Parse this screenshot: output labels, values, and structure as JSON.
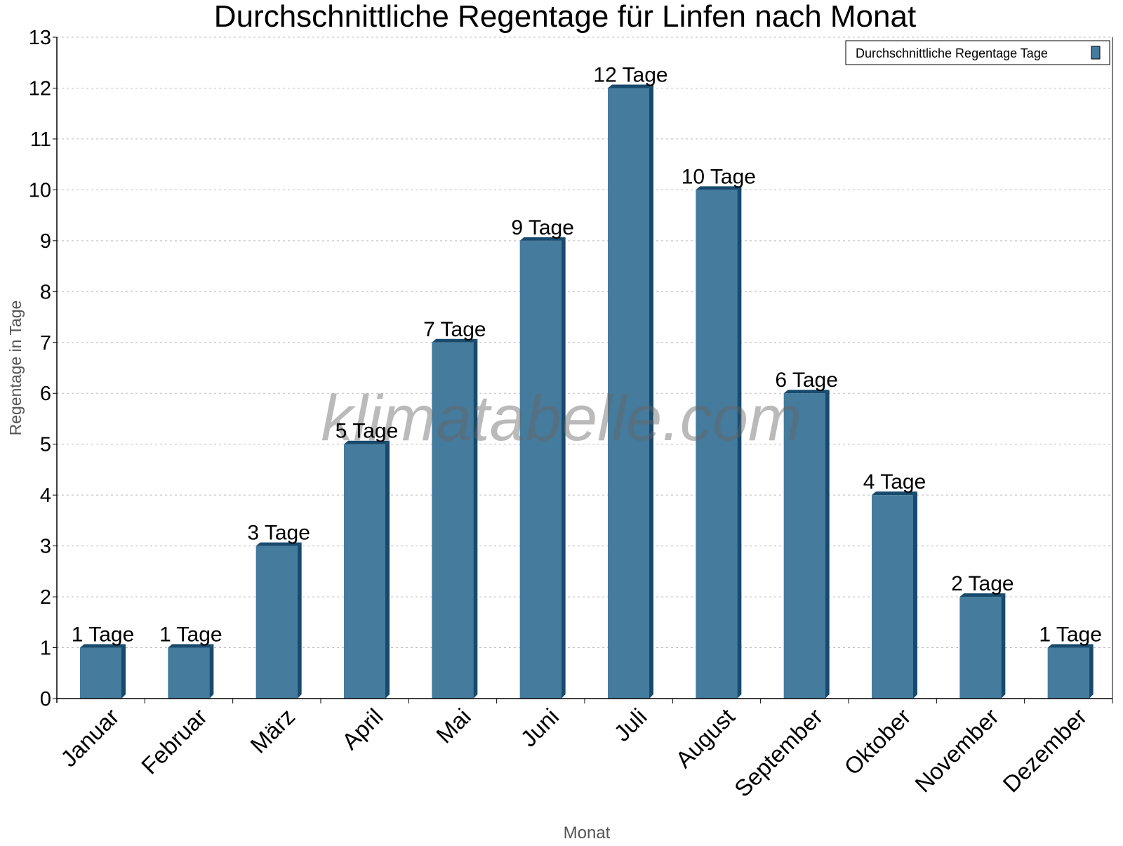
{
  "chart_data": {
    "type": "bar",
    "title": "Durchschnittliche Regentage für Linfen nach Monat",
    "xlabel": "Monat",
    "ylabel": "Regentage in Tage",
    "categories": [
      "Januar",
      "Februar",
      "März",
      "April",
      "Mai",
      "Juni",
      "Juli",
      "August",
      "September",
      "Oktober",
      "November",
      "Dezember"
    ],
    "series": [
      {
        "name": "Durchschnittliche Regentage Tage",
        "values": [
          1,
          1,
          3,
          5,
          7,
          9,
          12,
          10,
          6,
          4,
          2,
          1
        ],
        "color": "#457b9d",
        "side_color": "#174a6d"
      }
    ],
    "data_labels": [
      "1 Tage",
      "1 Tage",
      "3 Tage",
      "5 Tage",
      "7 Tage",
      "9 Tage",
      "12 Tage",
      "10 Tage",
      "6 Tage",
      "4 Tage",
      "2 Tage",
      "1 Tage"
    ],
    "ylim": [
      0,
      13
    ],
    "yticks": [
      0,
      1,
      2,
      3,
      4,
      5,
      6,
      7,
      8,
      9,
      10,
      11,
      12,
      13
    ],
    "grid": true,
    "legend_position": "top-right",
    "watermark": "klimatabelle.com"
  }
}
